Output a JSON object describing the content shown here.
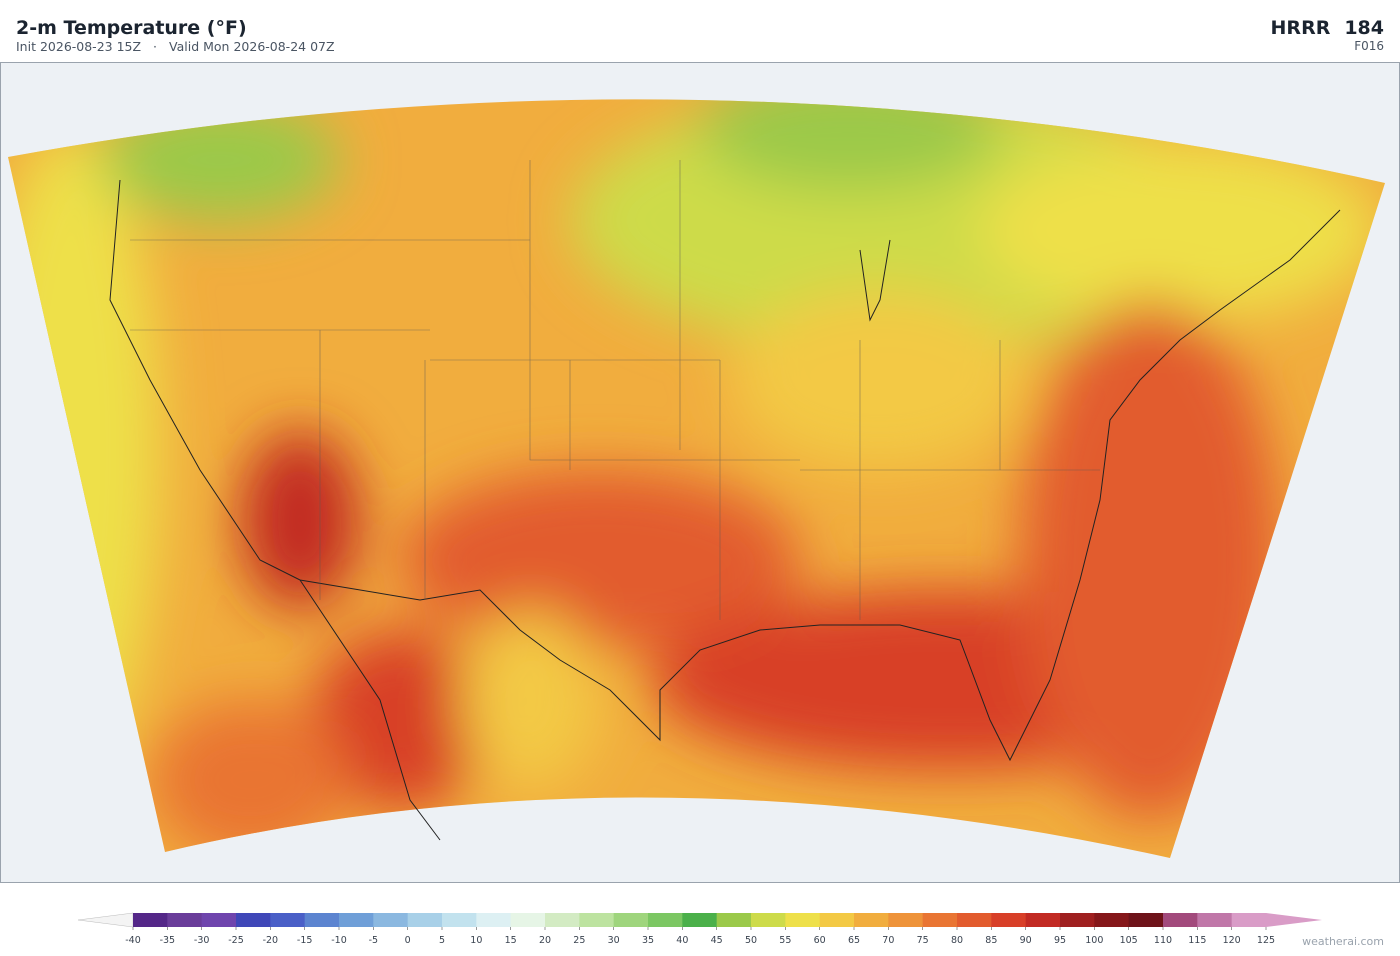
{
  "header": {
    "title": "2-m Temperature  (°F)",
    "init": "Init 2026-08-23 15Z",
    "separator": "·",
    "valid": "Valid Mon 2026-08-24 07Z",
    "model": "HRRR",
    "run": "184",
    "forecast_hour": "F016"
  },
  "colorbar": {
    "ticks": [
      -40,
      -35,
      -30,
      -25,
      -20,
      -15,
      -10,
      -5,
      0,
      5,
      10,
      15,
      20,
      25,
      30,
      35,
      40,
      45,
      50,
      55,
      60,
      65,
      70,
      75,
      80,
      85,
      90,
      95,
      100,
      105,
      110,
      115,
      120,
      125
    ],
    "colors": [
      "#542788",
      "#6a3d9a",
      "#6f45ad",
      "#3f47b8",
      "#4a5fc7",
      "#5c84d0",
      "#6f9fd8",
      "#8bb8e0",
      "#a8d0e8",
      "#c2e2ee",
      "#ddf0f3",
      "#e6f5e6",
      "#d3ebc3",
      "#bde3a0",
      "#9fd57d",
      "#7cc763",
      "#4bb04a",
      "#9bc94a",
      "#cddb4a",
      "#eee04a",
      "#f3c944",
      "#f1ad3e",
      "#ee933a",
      "#e97533",
      "#e25b2e",
      "#d83f28",
      "#c22a23",
      "#9f1f1f",
      "#85171a",
      "#6e1319",
      "#a24a7c",
      "#c077a8",
      "#d99cc7"
    ],
    "under_color": "#f4f4f4",
    "over_color": "#d99cc7"
  },
  "credit": "weatherai.com"
}
